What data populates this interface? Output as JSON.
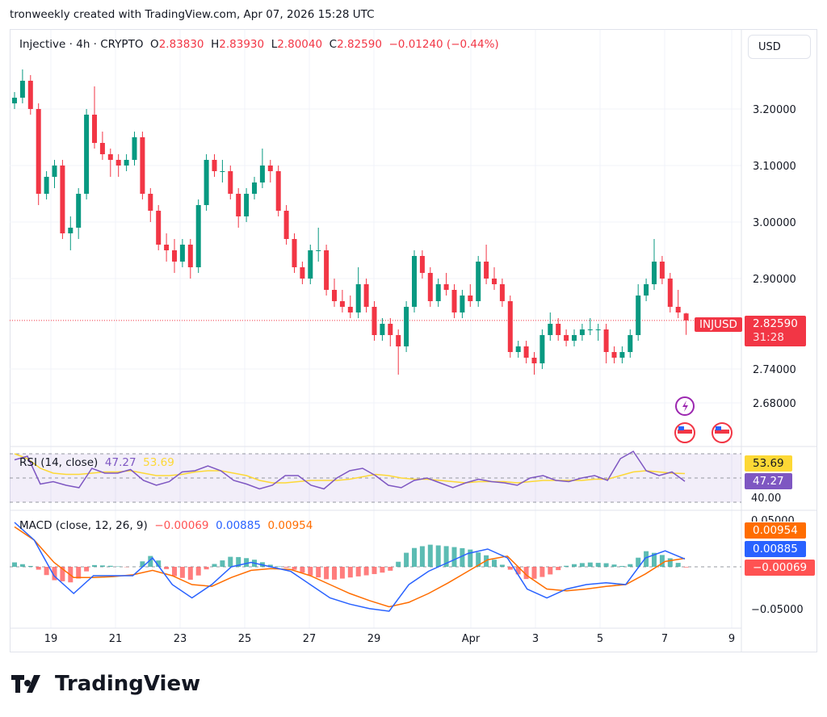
{
  "header": {
    "caption": "tronweekly created with TradingView.com, Apr 07, 2026 15:28 UTC"
  },
  "legend": {
    "symbol": "Injective · 4h · CRYPTO",
    "o_label": "O",
    "o": "2.83830",
    "h_label": "H",
    "h": "2.83930",
    "l_label": "L",
    "l": "2.80040",
    "c_label": "C",
    "c": "2.82590",
    "change": "−0.01240 (−0.44%)"
  },
  "currency_button": "USD",
  "price_tag": {
    "symbol": "INJUSD",
    "price": "2.82590",
    "countdown": "31:28"
  },
  "rsi": {
    "title": "RSI (14, close)",
    "value": "47.27",
    "ma_value": "53.69",
    "axis_label": "40.00"
  },
  "macd": {
    "title": "MACD (close, 12, 26, 9)",
    "hist_value": "−0.00069",
    "macd_value": "0.00885",
    "signal_value": "0.00954",
    "axis_top": "0.05000",
    "axis_bottom": "−0.05000"
  },
  "brand": "TradingView",
  "colors": {
    "up": "#089981",
    "down": "#f23645",
    "rsi": "#7e57c2",
    "rsi_ma": "#fdd835",
    "macd": "#2962ff",
    "signal": "#ff6d00",
    "hist_up": "#26a69a",
    "hist_down": "#ff5252"
  },
  "chart_data": {
    "type": "candlestick",
    "y_ticks": [
      "3.20000",
      "3.10000",
      "3.00000",
      "2.90000",
      "2.74000",
      "2.68000"
    ],
    "y_tick_values": [
      3.2,
      3.1,
      3.0,
      2.9,
      2.74,
      2.68
    ],
    "x_ticks": [
      "19",
      "21",
      "23",
      "25",
      "27",
      "29",
      "Apr",
      "3",
      "5",
      "7",
      "9"
    ],
    "ohlc": [
      [
        3.21,
        3.23,
        3.2,
        3.22
      ],
      [
        3.22,
        3.27,
        3.21,
        3.25
      ],
      [
        3.25,
        3.26,
        3.19,
        3.2
      ],
      [
        3.2,
        3.21,
        3.03,
        3.05
      ],
      [
        3.05,
        3.09,
        3.04,
        3.08
      ],
      [
        3.08,
        3.11,
        3.06,
        3.1
      ],
      [
        3.1,
        3.11,
        2.97,
        2.98
      ],
      [
        2.98,
        3.01,
        2.95,
        2.99
      ],
      [
        2.99,
        3.06,
        2.97,
        3.05
      ],
      [
        3.05,
        3.2,
        3.04,
        3.19
      ],
      [
        3.19,
        3.24,
        3.13,
        3.14
      ],
      [
        3.14,
        3.16,
        3.11,
        3.12
      ],
      [
        3.12,
        3.13,
        3.08,
        3.11
      ],
      [
        3.11,
        3.12,
        3.08,
        3.1
      ],
      [
        3.1,
        3.12,
        3.09,
        3.11
      ],
      [
        3.11,
        3.16,
        3.1,
        3.15
      ],
      [
        3.15,
        3.16,
        3.04,
        3.05
      ],
      [
        3.05,
        3.06,
        3.0,
        3.02
      ],
      [
        3.02,
        3.03,
        2.95,
        2.96
      ],
      [
        2.96,
        2.98,
        2.93,
        2.95
      ],
      [
        2.95,
        2.97,
        2.91,
        2.93
      ],
      [
        2.93,
        2.97,
        2.92,
        2.96
      ],
      [
        2.96,
        2.97,
        2.9,
        2.92
      ],
      [
        2.92,
        3.04,
        2.91,
        3.03
      ],
      [
        3.03,
        3.12,
        3.02,
        3.11
      ],
      [
        3.11,
        3.12,
        3.08,
        3.09
      ],
      [
        3.09,
        3.11,
        3.07,
        3.09
      ],
      [
        3.09,
        3.1,
        3.04,
        3.05
      ],
      [
        3.05,
        3.06,
        2.99,
        3.01
      ],
      [
        3.01,
        3.06,
        3.0,
        3.05
      ],
      [
        3.05,
        3.08,
        3.04,
        3.07
      ],
      [
        3.07,
        3.13,
        3.06,
        3.1
      ],
      [
        3.1,
        3.11,
        3.07,
        3.09
      ],
      [
        3.09,
        3.1,
        3.01,
        3.02
      ],
      [
        3.02,
        3.03,
        2.96,
        2.97
      ],
      [
        2.97,
        2.98,
        2.91,
        2.92
      ],
      [
        2.92,
        2.93,
        2.89,
        2.9
      ],
      [
        2.9,
        2.96,
        2.89,
        2.95
      ],
      [
        2.95,
        2.99,
        2.93,
        2.95
      ],
      [
        2.95,
        2.96,
        2.87,
        2.88
      ],
      [
        2.88,
        2.9,
        2.85,
        2.86
      ],
      [
        2.86,
        2.88,
        2.84,
        2.85
      ],
      [
        2.85,
        2.87,
        2.83,
        2.84
      ],
      [
        2.84,
        2.92,
        2.83,
        2.89
      ],
      [
        2.89,
        2.9,
        2.84,
        2.85
      ],
      [
        2.85,
        2.86,
        2.79,
        2.8
      ],
      [
        2.8,
        2.83,
        2.79,
        2.82
      ],
      [
        2.82,
        2.83,
        2.78,
        2.8
      ],
      [
        2.8,
        2.81,
        2.73,
        2.78
      ],
      [
        2.78,
        2.86,
        2.77,
        2.85
      ],
      [
        2.85,
        2.95,
        2.84,
        2.94
      ],
      [
        2.94,
        2.95,
        2.9,
        2.91
      ],
      [
        2.91,
        2.92,
        2.85,
        2.86
      ],
      [
        2.86,
        2.9,
        2.85,
        2.89
      ],
      [
        2.89,
        2.91,
        2.87,
        2.88
      ],
      [
        2.88,
        2.89,
        2.83,
        2.84
      ],
      [
        2.84,
        2.88,
        2.83,
        2.87
      ],
      [
        2.87,
        2.89,
        2.85,
        2.86
      ],
      [
        2.86,
        2.94,
        2.85,
        2.93
      ],
      [
        2.93,
        2.96,
        2.89,
        2.9
      ],
      [
        2.9,
        2.92,
        2.88,
        2.89
      ],
      [
        2.89,
        2.9,
        2.85,
        2.86
      ],
      [
        2.86,
        2.87,
        2.76,
        2.77
      ],
      [
        2.77,
        2.79,
        2.76,
        2.78
      ],
      [
        2.78,
        2.79,
        2.75,
        2.76
      ],
      [
        2.76,
        2.77,
        2.73,
        2.75
      ],
      [
        2.75,
        2.81,
        2.74,
        2.8
      ],
      [
        2.8,
        2.84,
        2.79,
        2.82
      ],
      [
        2.82,
        2.83,
        2.79,
        2.8
      ],
      [
        2.8,
        2.81,
        2.78,
        2.79
      ],
      [
        2.79,
        2.81,
        2.78,
        2.8
      ],
      [
        2.8,
        2.82,
        2.79,
        2.81
      ],
      [
        2.81,
        2.83,
        2.8,
        2.81
      ],
      [
        2.81,
        2.82,
        2.79,
        2.81
      ],
      [
        2.81,
        2.82,
        2.75,
        2.77
      ],
      [
        2.77,
        2.78,
        2.75,
        2.76
      ],
      [
        2.76,
        2.78,
        2.75,
        2.77
      ],
      [
        2.77,
        2.81,
        2.76,
        2.8
      ],
      [
        2.8,
        2.89,
        2.79,
        2.87
      ],
      [
        2.87,
        2.9,
        2.86,
        2.89
      ],
      [
        2.89,
        2.97,
        2.88,
        2.93
      ],
      [
        2.93,
        2.94,
        2.89,
        2.9
      ],
      [
        2.9,
        2.91,
        2.84,
        2.85
      ],
      [
        2.85,
        2.88,
        2.83,
        2.84
      ],
      [
        2.8383,
        2.8393,
        2.8004,
        2.8259
      ]
    ],
    "last_price": 2.8259,
    "rsi_series": [
      65,
      68,
      45,
      47,
      44,
      42,
      58,
      54,
      54,
      57,
      48,
      44,
      47,
      55,
      56,
      60,
      56,
      48,
      45,
      41,
      44,
      52,
      52,
      44,
      41,
      50,
      56,
      58,
      52,
      44,
      42,
      48,
      50,
      46,
      42,
      46,
      49,
      47,
      46,
      44,
      50,
      52,
      48,
      47,
      50,
      52,
      48,
      66,
      72,
      56,
      52,
      55,
      47.27
    ],
    "rsi_ma_series": [
      70,
      66,
      58,
      54,
      53,
      53,
      54,
      55,
      55,
      56,
      54,
      52,
      52,
      53,
      55,
      56,
      56,
      54,
      52,
      48,
      46,
      46,
      47,
      48,
      48,
      48,
      49,
      51,
      53,
      52,
      50,
      49,
      49,
      48,
      47,
      46,
      47,
      47,
      47,
      46,
      47,
      48,
      48,
      48,
      48,
      49,
      49,
      52,
      55,
      56,
      55,
      54,
      53.69
    ],
    "rsi_levels": [
      70,
      50,
      30
    ],
    "macd_series": [
      0.05,
      0.03,
      -0.01,
      -0.03,
      -0.01,
      -0.01,
      -0.01,
      0.01,
      -0.02,
      -0.035,
      -0.02,
      0.0,
      0.005,
      0.0,
      -0.005,
      -0.02,
      -0.035,
      -0.042,
      -0.047,
      -0.05,
      -0.02,
      -0.005,
      0.005,
      0.015,
      0.02,
      0.01,
      -0.025,
      -0.035,
      -0.025,
      -0.02,
      -0.018,
      -0.02,
      0.01,
      0.018,
      0.00885
    ],
    "signal_series": [
      0.045,
      0.03,
      0.005,
      -0.012,
      -0.012,
      -0.011,
      -0.009,
      -0.004,
      -0.01,
      -0.02,
      -0.022,
      -0.012,
      -0.004,
      -0.002,
      -0.003,
      -0.01,
      -0.02,
      -0.03,
      -0.038,
      -0.045,
      -0.04,
      -0.03,
      -0.018,
      -0.005,
      0.008,
      0.012,
      -0.01,
      -0.025,
      -0.027,
      -0.025,
      -0.022,
      -0.02,
      -0.008,
      0.006,
      0.00954
    ]
  }
}
